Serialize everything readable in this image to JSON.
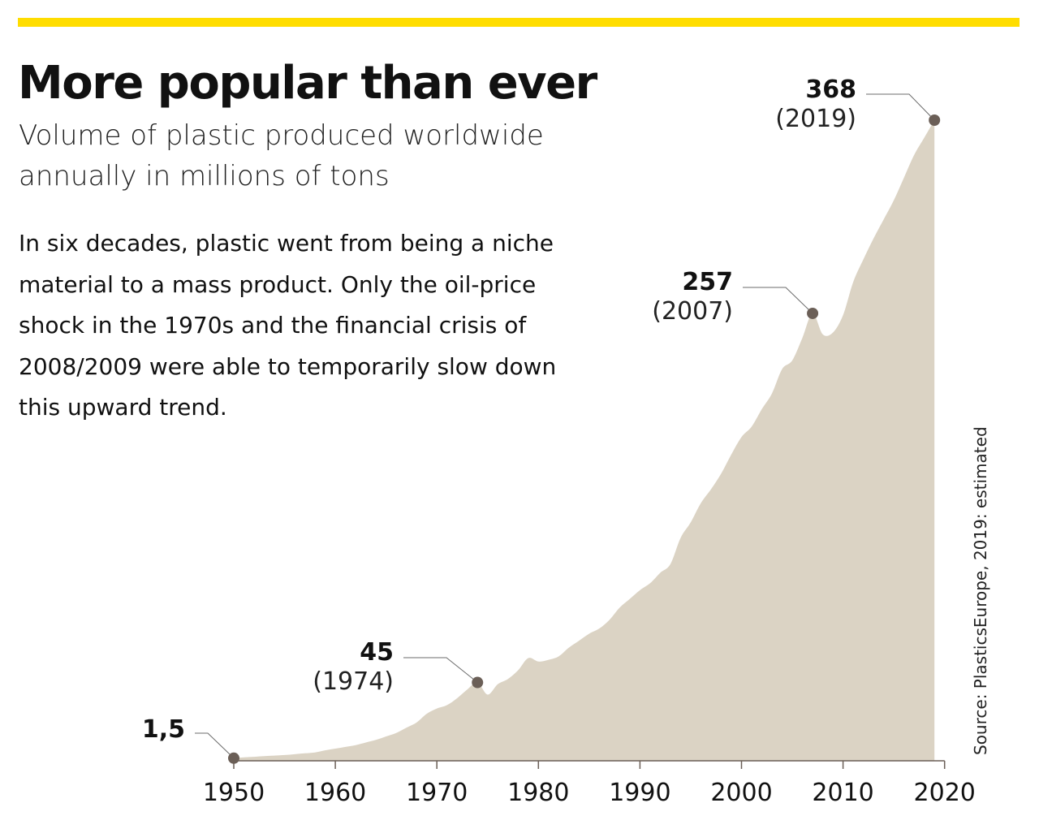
{
  "header": {
    "title": "More popular than ever",
    "subtitle": "Volume of plastic produced worldwide annually in millions of tons",
    "body": "In six decades, plastic went from being a niche material to a mass product. Only the oil-price shock in the 1970s and the financial crisis of 2008/2009 were able to temporarily slow down this upward trend."
  },
  "source": "Source: PlasticsEurope, 2019: estimated",
  "colors": {
    "accent": "#ffdd00",
    "area": "#dbd3c4",
    "dot": "#6b5f57",
    "axis": "#6b5f57"
  },
  "chart_data": {
    "type": "area",
    "title": "More popular than ever",
    "ylabel": "Millions of tons",
    "xlabel": "",
    "xlim": [
      1950,
      2020
    ],
    "ylim": [
      0,
      368
    ],
    "x_ticks": [
      "1950",
      "1960",
      "1970",
      "1980",
      "1990",
      "2000",
      "2010",
      "2020"
    ],
    "x": [
      1950,
      1951,
      1952,
      1953,
      1954,
      1955,
      1956,
      1957,
      1958,
      1959,
      1960,
      1961,
      1962,
      1963,
      1964,
      1965,
      1966,
      1967,
      1968,
      1969,
      1970,
      1971,
      1972,
      1973,
      1974,
      1975,
      1976,
      1977,
      1978,
      1979,
      1980,
      1981,
      1982,
      1983,
      1984,
      1985,
      1986,
      1987,
      1988,
      1989,
      1990,
      1991,
      1992,
      1993,
      1994,
      1995,
      1996,
      1997,
      1998,
      1999,
      2000,
      2001,
      2002,
      2003,
      2004,
      2005,
      2006,
      2007,
      2008,
      2009,
      2010,
      2011,
      2012,
      2013,
      2014,
      2015,
      2016,
      2017,
      2018,
      2019
    ],
    "values": [
      1.5,
      2,
      2.3,
      2.7,
      3,
      3.3,
      3.8,
      4.3,
      4.8,
      6,
      7,
      8,
      9,
      10.5,
      12,
      14,
      16,
      19,
      22,
      27,
      30,
      32,
      36,
      41,
      45,
      38,
      44,
      47,
      52,
      59,
      57,
      58,
      60,
      65,
      69,
      73,
      76,
      81,
      88,
      93,
      98,
      102,
      108,
      113,
      128,
      137,
      148,
      156,
      165,
      176,
      186,
      192,
      202,
      211,
      225,
      230,
      243,
      257,
      245,
      246,
      256,
      275,
      288,
      300,
      311,
      322,
      335,
      348,
      358,
      368
    ],
    "annotations": [
      {
        "year": 1950,
        "value_label": "1,5",
        "year_label": ""
      },
      {
        "year": 1974,
        "value_label": "45",
        "year_label": "(1974)"
      },
      {
        "year": 2007,
        "value_label": "257",
        "year_label": "(2007)"
      },
      {
        "year": 2019,
        "value_label": "368",
        "year_label": "(2019)"
      }
    ],
    "grid": false,
    "legend": "none"
  }
}
